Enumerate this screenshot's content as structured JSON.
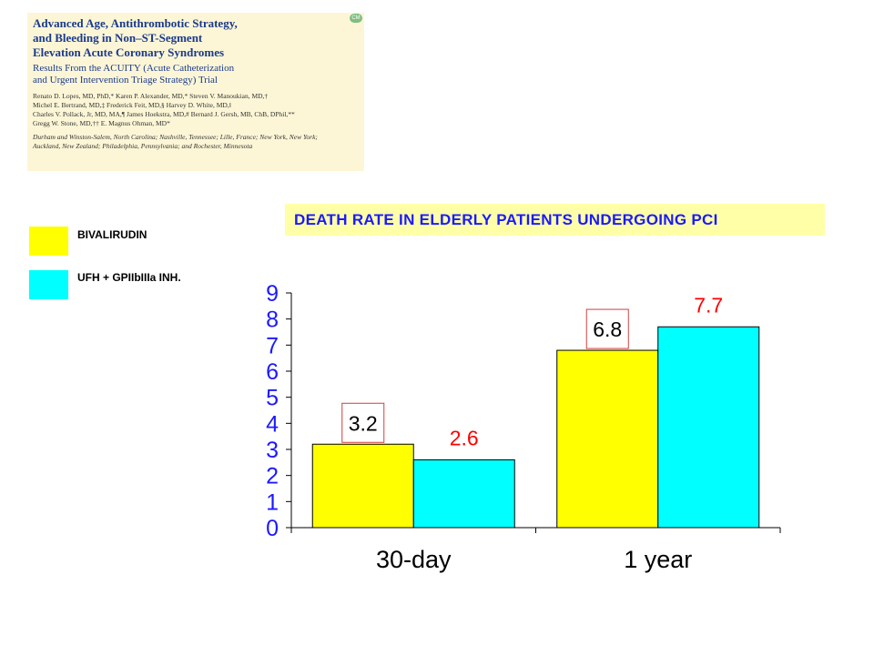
{
  "article": {
    "title_lines": [
      "Advanced Age, Antithrombotic Strategy,",
      "and Bleeding in Non–ST-Segment",
      "Elevation Acute Coronary Syndromes"
    ],
    "subtitle_lines": [
      "Results From the ACUITY (Acute Catheterization",
      "and Urgent Intervention Triage Strategy) Trial"
    ],
    "author_lines": [
      "Renato D. Lopes, MD, PhD,* Karen P. Alexander, MD,* Steven V. Manoukian, MD,†",
      "Michel E. Bertrand, MD,‡ Frederick Feit, MD,§ Harvey D. White, MD,‖",
      "Charles V. Pollack, Jr, MD, MA,¶ James Hoekstra, MD,# Bernard J. Gersh, MB, ChB, DPhil,**",
      "Gregg W. Stone, MD,†† E. Magnus Ohman, MD*"
    ],
    "affiliation_lines": [
      "Durham and Winston-Salem, North Carolina; Nashville, Tennessee; Lille, France; New York, New York;",
      "Auckland, New Zealand; Philadelphia, Pennsylvania; and Rochester, Minnesota"
    ],
    "badge": "CM"
  },
  "legend": [
    {
      "label": "BIVALIRUDIN",
      "color": "#ffff00"
    },
    {
      "label": "UFH + GPIIbIIIa  INH.",
      "color": "#00ffff"
    }
  ],
  "chart_data": {
    "type": "bar",
    "title": "DEATH RATE IN ELDERLY PATIENTS UNDERGOING  PCI",
    "categories": [
      "30-day",
      "1 year"
    ],
    "series": [
      {
        "name": "BIVALIRUDIN",
        "values": [
          3.2,
          6.8
        ],
        "labels": [
          "3.2",
          "6.8"
        ],
        "color": "#ffff00"
      },
      {
        "name": "UFH + GPIIbIIIa  INH.",
        "values": [
          2.6,
          7.7
        ],
        "labels": [
          "2.6",
          "7.7"
        ],
        "color": "#00ffff"
      }
    ],
    "ylim": [
      0,
      9
    ],
    "yticks": [
      "0",
      "1",
      "2",
      "3",
      "4",
      "5",
      "6",
      "7",
      "8",
      "9"
    ],
    "xlabel": "",
    "ylabel": "",
    "grid": false,
    "label_color": "#ff0000",
    "tick_color": "#1a1aff"
  }
}
